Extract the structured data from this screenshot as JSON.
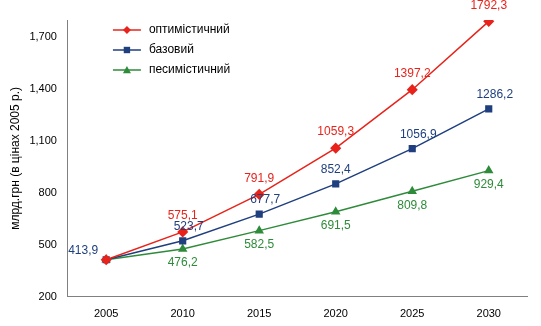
{
  "chart_data": {
    "type": "line",
    "y_label": "млрд.грн (в цінах 2005 р.)",
    "categories": [
      "2005",
      "2010",
      "2015",
      "2020",
      "2025",
      "2030"
    ],
    "series": [
      {
        "name": "оптимістичний",
        "color": "#e8231b",
        "marker": "diamond",
        "line_style": "solid",
        "values": [
          413.9,
          575.1,
          791.9,
          1059.3,
          1397.2,
          1792.3
        ],
        "value_labels": [
          null,
          "575,1",
          "791,9",
          "1059,3",
          "1397,2",
          "1792,3"
        ]
      },
      {
        "name": "базовий",
        "color": "#1f3f7f",
        "marker": "square",
        "line_style": "solid",
        "values": [
          413.9,
          523.7,
          677.7,
          852.4,
          1056.9,
          1286.2
        ],
        "value_labels": [
          "413,9",
          "523,7",
          "677,7",
          "852,4",
          "1056,9",
          "1286,2"
        ]
      },
      {
        "name": "песимістичний",
        "color": "#2e8b3a",
        "marker": "triangle",
        "line_style": "solid",
        "values": [
          413.9,
          476.2,
          582.5,
          691.5,
          809.8,
          929.4
        ],
        "value_labels": [
          null,
          "476,2",
          "582,5",
          "691,5",
          "809,8",
          "929,4"
        ]
      }
    ],
    "ylim": [
      200,
      1800
    ],
    "yticks": [
      200,
      500,
      800,
      1100,
      1400,
      1700
    ],
    "grid": false,
    "legend": "upper left",
    "data_labels": true
  }
}
